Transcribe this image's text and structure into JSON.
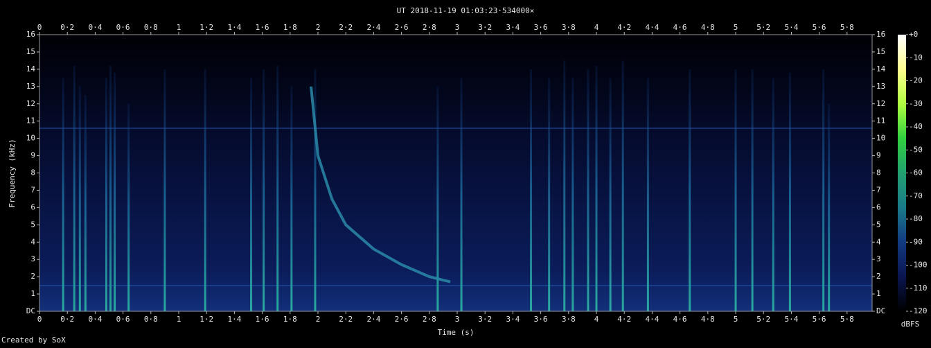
{
  "chart_data": {
    "type": "spectrogram",
    "title": "UT 2018-11-19 01:03:23·534000×",
    "x_label": "Time (s)",
    "y_label": "Frequency (kHz)",
    "footer": "Created by SoX",
    "xlim": [
      0,
      5.98
    ],
    "ylim": [
      0,
      16
    ],
    "xticks": [
      0,
      {
        "value": 0.2,
        "label": "0·2"
      },
      {
        "value": 0.4,
        "label": "0·4"
      },
      {
        "value": 0.6,
        "label": "0·6"
      },
      {
        "value": 0.8,
        "label": "0·8"
      },
      1,
      {
        "value": 1.2,
        "label": "1·2"
      },
      {
        "value": 1.4,
        "label": "1·4"
      },
      {
        "value": 1.6,
        "label": "1·6"
      },
      {
        "value": 1.8,
        "label": "1·8"
      },
      2,
      {
        "value": 2.2,
        "label": "2·2"
      },
      {
        "value": 2.4,
        "label": "2·4"
      },
      {
        "value": 2.6,
        "label": "2·6"
      },
      {
        "value": 2.8,
        "label": "2·8"
      },
      3,
      {
        "value": 3.2,
        "label": "3·2"
      },
      {
        "value": 3.4,
        "label": "3·4"
      },
      {
        "value": 3.6,
        "label": "3·6"
      },
      {
        "value": 3.8,
        "label": "3·8"
      },
      4,
      {
        "value": 4.2,
        "label": "4·2"
      },
      {
        "value": 4.4,
        "label": "4·4"
      },
      {
        "value": 4.6,
        "label": "4·6"
      },
      {
        "value": 4.8,
        "label": "4·8"
      },
      5,
      {
        "value": 5.2,
        "label": "5·2"
      },
      {
        "value": 5.4,
        "label": "5·4"
      },
      {
        "value": 5.6,
        "label": "5·6"
      },
      {
        "value": 5.8,
        "label": "5·8"
      }
    ],
    "yticks": [
      {
        "value": 0,
        "label": "DC"
      },
      1,
      2,
      3,
      4,
      5,
      6,
      7,
      8,
      9,
      10,
      11,
      12,
      13,
      14,
      15,
      16
    ],
    "streaks": {
      "x": [
        0.17,
        0.25,
        0.29,
        0.33,
        0.48,
        0.51,
        0.54,
        0.64,
        0.9,
        1.19,
        1.52,
        1.61,
        1.71,
        1.81,
        1.98,
        2.86,
        3.03,
        3.53,
        3.66,
        3.77,
        3.83,
        3.94,
        4.0,
        4.1,
        4.19,
        4.37,
        4.67,
        5.0,
        5.12,
        5.27,
        5.39,
        5.63,
        5.67
      ],
      "values": [
        13.5,
        14.2,
        13.0,
        12.5,
        13.5,
        14.2,
        13.8,
        12.0,
        14.0,
        14.0,
        13.5,
        14.0,
        14.2,
        13.0,
        14.0,
        13.0,
        13.5,
        14.0,
        13.5,
        14.5,
        13.5,
        14.0,
        14.2,
        13.5,
        14.5,
        13.5,
        14.0,
        14.0,
        14.0,
        13.5,
        13.8,
        14.0,
        12.0
      ]
    },
    "whistler": {
      "x": [
        1.95,
        2.0,
        2.1,
        2.2,
        2.4,
        2.6,
        2.8,
        2.95
      ],
      "values": [
        13,
        9,
        6.5,
        5,
        3.6,
        2.7,
        2.0,
        1.7
      ]
    },
    "colorbar": {
      "label": "dBFS",
      "lim": [
        -120,
        0
      ],
      "ticks": [
        {
          "value": 0,
          "label": "+0"
        },
        -10,
        -20,
        -30,
        -40,
        -50,
        -60,
        -70,
        -80,
        -90,
        -100,
        -110,
        -120
      ],
      "colors": [
        "#000000",
        "#0a1550",
        "#123a80",
        "#1a7a8a",
        "#22a070",
        "#30d040",
        "#b0ff40",
        "#ffff90",
        "#ffffff"
      ]
    }
  }
}
